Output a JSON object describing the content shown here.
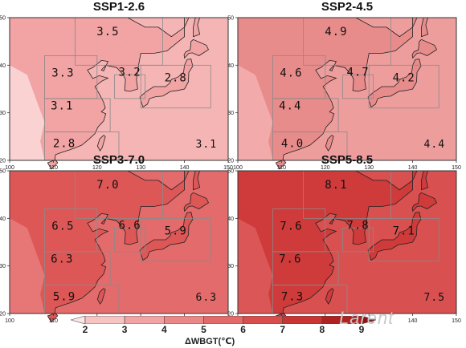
{
  "figure": {
    "colorbar": {
      "ticks": [
        "2",
        "3",
        "4",
        "5",
        "6",
        "7",
        "8",
        "9"
      ],
      "colors": [
        "#fde6e6",
        "#f7c4c4",
        "#f2a3a3",
        "#ec8787",
        "#e46a6a",
        "#da4d4d",
        "#c93434",
        "#b02222",
        "#8f1414"
      ],
      "label": "ΔWBGT(℃)"
    },
    "watermark": "Larent",
    "axes": {
      "x_ticks": [
        "100",
        "110",
        "120",
        "130",
        "140",
        "150"
      ],
      "y_ticks": [
        "20",
        "30",
        "40",
        "50"
      ]
    }
  },
  "panels": [
    {
      "title": "SSP1-2.6",
      "base_color": "#f2a3a3",
      "sea_color": "#f5b5b5",
      "west_color": "#fad2d2",
      "values": {
        "north": "3.5",
        "west": "3.3",
        "korea": "3.2",
        "japan": "2.8",
        "central": "3.1",
        "south": "2.8",
        "corner": "3.1"
      }
    },
    {
      "title": "SSP2-4.5",
      "base_color": "#e88b8b",
      "sea_color": "#ee9d9d",
      "west_color": "#f2aaaa",
      "values": {
        "north": "4.9",
        "west": "4.6",
        "korea": "4.7",
        "japan": "4.2",
        "central": "4.4",
        "south": "4.0",
        "corner": "4.4"
      }
    },
    {
      "title": "SSP3-7.0",
      "base_color": "#de5757",
      "sea_color": "#e36b6b",
      "west_color": "#e77676",
      "values": {
        "north": "7.0",
        "west": "6.5",
        "korea": "6.6",
        "japan": "5.9",
        "central": "6.3",
        "south": "5.9",
        "corner": "6.3"
      }
    },
    {
      "title": "SSP5-8.5",
      "base_color": "#cf3a3a",
      "sea_color": "#d95050",
      "west_color": "#db5757",
      "values": {
        "north": "8.1",
        "west": "7.6",
        "korea": "7.8",
        "japan": "7.1",
        "central": "7.6",
        "south": "7.3",
        "corner": "7.5"
      }
    }
  ]
}
